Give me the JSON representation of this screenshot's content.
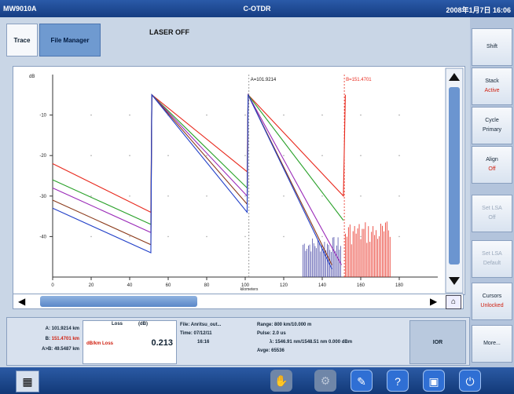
{
  "titlebar": {
    "left": "MW9010A",
    "center": "C-OTDR",
    "right": "2008年1月7日 16:06"
  },
  "tabs": {
    "trace": "Trace",
    "file_manager": "File Manager"
  },
  "status": {
    "laser": "LASER OFF"
  },
  "chart": {
    "y_unit": "dB",
    "y_ticks": [
      "-10",
      "-20",
      "-30",
      "-40"
    ],
    "x_ticks": [
      "0",
      "20",
      "40",
      "60",
      "80",
      "100",
      "120",
      "140",
      "160",
      "180"
    ],
    "x_unit": "kilometers",
    "cursor_a": "A=101.9214",
    "cursor_b": "B=151.4701",
    "colors": {
      "red": "#e8281c",
      "green": "#2aa12a",
      "purple": "#9a2ab8",
      "brown": "#8b3a1a",
      "blue": "#2240c8"
    }
  },
  "chart_data": {
    "type": "line",
    "xlabel": "kilometers",
    "ylabel": "dB",
    "xlim": [
      0,
      200
    ],
    "ylim": [
      -50,
      0
    ],
    "series": [
      {
        "color": "#e8281c",
        "x": [
          0,
          51,
          51.5,
          101,
          101.5,
          151,
          152
        ],
        "y": [
          -22,
          -34,
          -5,
          -24,
          -5,
          -30,
          -5
        ]
      },
      {
        "color": "#2aa12a",
        "x": [
          0,
          51,
          51.5,
          101,
          101.5,
          151
        ],
        "y": [
          -26,
          -37,
          -5,
          -28,
          -5,
          -36
        ]
      },
      {
        "color": "#9a2ab8",
        "x": [
          0,
          51,
          51.5,
          101,
          101.5,
          150
        ],
        "y": [
          -28,
          -39,
          -5,
          -30,
          -5,
          -47
        ]
      },
      {
        "color": "#8b3a1a",
        "x": [
          0,
          51,
          51.5,
          101,
          101.5,
          145
        ],
        "y": [
          -31,
          -42,
          -5,
          -32,
          -5,
          -47
        ]
      },
      {
        "color": "#2240c8",
        "x": [
          0,
          51,
          51.5,
          101,
          101.5,
          145
        ],
        "y": [
          -33,
          -44,
          -5,
          -34,
          -5,
          -48
        ]
      }
    ],
    "cursors": [
      {
        "label": "A=101.9214",
        "x": 101.9214
      },
      {
        "label": "B=151.4701",
        "x": 151.4701
      }
    ]
  },
  "info": {
    "a_label": "A:",
    "a_value": "101.9214 km",
    "b_label": "B:",
    "b_value": "151.4701 km",
    "ab_label": "A>B:",
    "ab_value": "49.5487 km",
    "loss_header": "Loss",
    "loss_unit": "(dB)",
    "loss_name": "dB/km Loss",
    "loss_value": "0.213",
    "file": "File: Anritsu_out...",
    "time_label": "Time: 07/12/11",
    "time_value": "16:16",
    "range": "Range: 800 km/10.000 m",
    "pulse": "Pulse: 2.0 us",
    "lambda": "λ: 1546.91 nm/1548.51 nm 0.000 dBm",
    "avg": "Avge: 65536",
    "ior_label": "IOR"
  },
  "side": {
    "shift": "Shift",
    "stack": "Stack",
    "stack_state": "Active",
    "cycle": "Cycle",
    "cycle_state": "Primary",
    "align": "Align",
    "align_state": "Off",
    "set_lsa": "Set LSA",
    "set_lsa_state": "Off",
    "set_lsa2": "Set LSA",
    "set_lsa2_state": "Default",
    "cursors": "Cursors",
    "cursors_state": "Unlocked",
    "more": "More..."
  }
}
